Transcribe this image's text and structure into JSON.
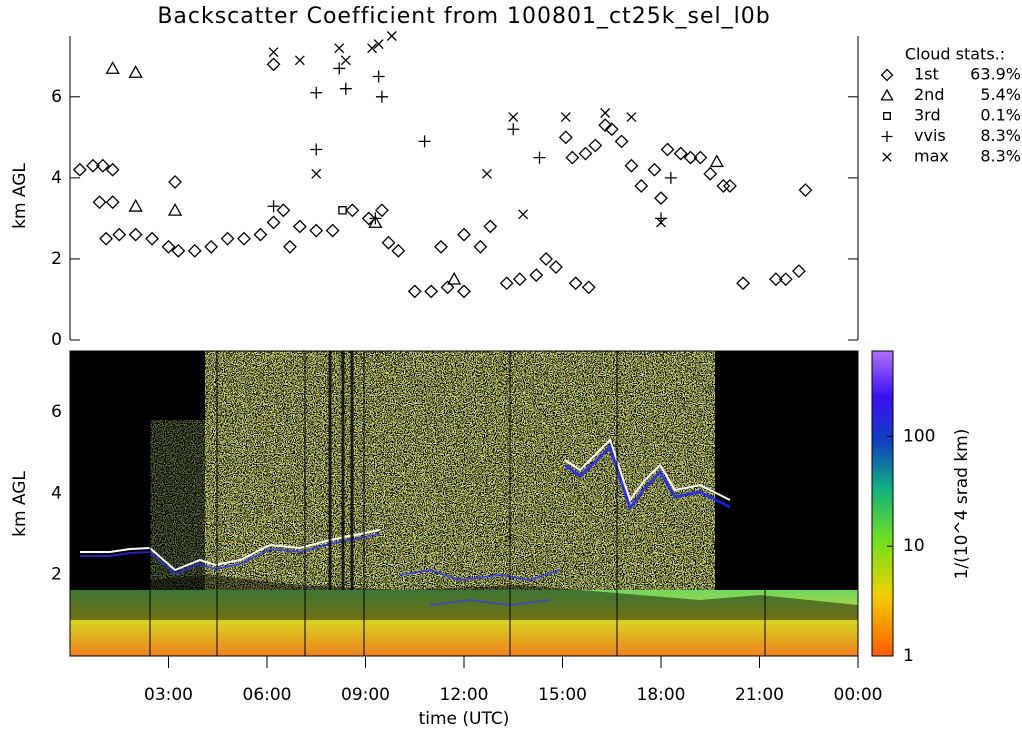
{
  "chart_data": [
    {
      "type": "scatter",
      "title": "Backscatter Coefficient from 100801_ct25k_sel_l0b",
      "ylabel": "km AGL",
      "xlim": [
        0,
        24
      ],
      "ylim": [
        0,
        7.5
      ],
      "yticks": [
        0,
        2,
        4,
        6
      ],
      "legend_title": "Cloud stats.:",
      "color": "#000000",
      "series": [
        {
          "name": "1st",
          "marker": "diamond",
          "share": 63.9,
          "share_label": "63.9%",
          "x": [
            0.3,
            0.7,
            1.0,
            1.3,
            0.9,
            1.3,
            1.1,
            1.5,
            2.0,
            2.5,
            3.0,
            3.3,
            3.8,
            4.3,
            4.8,
            5.3,
            5.8,
            6.2,
            6.5,
            6.7,
            7.0,
            7.5,
            8.0,
            8.6,
            9.1,
            9.5,
            9.7,
            10.0,
            10.5,
            11.0,
            11.5,
            12.0,
            11.3,
            12.0,
            12.5,
            12.8,
            13.3,
            13.7,
            14.2,
            14.5,
            14.8,
            15.1,
            15.3,
            15.7,
            16.0,
            16.3,
            16.5,
            15.4,
            15.8,
            16.8,
            17.1,
            17.4,
            17.8,
            18.2,
            18.6,
            18.9,
            19.2,
            19.5,
            19.9,
            20.1,
            20.5,
            21.5,
            21.8,
            22.2,
            22.4,
            6.2,
            3.2,
            18.0
          ],
          "values": [
            4.2,
            4.3,
            4.3,
            4.2,
            3.4,
            3.4,
            2.5,
            2.6,
            2.6,
            2.5,
            2.3,
            2.2,
            2.2,
            2.3,
            2.5,
            2.5,
            2.6,
            2.9,
            3.2,
            2.3,
            2.8,
            2.7,
            2.7,
            3.2,
            3.0,
            3.2,
            2.4,
            2.2,
            1.2,
            1.2,
            1.3,
            1.2,
            2.3,
            2.6,
            2.3,
            2.8,
            1.4,
            1.5,
            1.6,
            2.0,
            1.8,
            5.0,
            4.5,
            4.6,
            4.8,
            5.3,
            5.2,
            1.4,
            1.3,
            4.9,
            4.3,
            3.8,
            4.2,
            4.7,
            4.6,
            4.5,
            4.5,
            4.1,
            3.8,
            3.8,
            1.4,
            1.5,
            1.5,
            1.7,
            3.7,
            6.8,
            3.9,
            3.5
          ]
        },
        {
          "name": "2nd",
          "marker": "triangle",
          "share": 5.4,
          "share_label": "5.4%",
          "x": [
            1.3,
            2.0,
            3.2,
            2.0,
            11.7,
            19.7,
            9.3
          ],
          "values": [
            6.7,
            6.6,
            3.2,
            3.3,
            1.5,
            4.4,
            2.9
          ]
        },
        {
          "name": "3rd",
          "marker": "square",
          "share": 0.1,
          "share_label": "0.1%",
          "x": [
            8.3
          ],
          "values": [
            3.2
          ]
        },
        {
          "name": "vvis",
          "marker": "plus",
          "share": 8.3,
          "share_label": "8.3%",
          "x": [
            7.5,
            7.5,
            8.2,
            8.4,
            9.4,
            9.5,
            10.8,
            13.5,
            14.3,
            18.3,
            18.0,
            6.2,
            9.3
          ],
          "values": [
            4.7,
            6.1,
            6.7,
            6.2,
            6.5,
            6.0,
            4.9,
            5.2,
            4.5,
            4.0,
            3.0,
            3.3,
            3.0
          ]
        },
        {
          "name": "max",
          "marker": "cross",
          "share": 8.3,
          "share_label": "8.3%",
          "x": [
            6.2,
            7.0,
            8.2,
            8.4,
            9.2,
            9.4,
            9.8,
            7.5,
            13.5,
            15.1,
            16.3,
            17.1,
            12.7,
            18.0,
            13.8
          ],
          "values": [
            7.1,
            6.9,
            7.2,
            6.9,
            7.2,
            7.3,
            7.5,
            4.1,
            5.5,
            5.5,
            5.6,
            5.5,
            4.1,
            2.9,
            3.1
          ]
        }
      ]
    },
    {
      "type": "heatmap",
      "ylabel": "km AGL",
      "xlabel": "time (UTC)",
      "xlim": [
        0,
        24
      ],
      "xticks": [
        {
          "value": 3,
          "label": "03:00"
        },
        {
          "value": 6,
          "label": "06:00"
        },
        {
          "value": 9,
          "label": "09:00"
        },
        {
          "value": 12,
          "label": "12:00"
        },
        {
          "value": 15,
          "label": "15:00"
        },
        {
          "value": 18,
          "label": "18:00"
        },
        {
          "value": 21,
          "label": "21:00"
        },
        {
          "value": 24,
          "label": "00:00"
        }
      ],
      "ylim": [
        0,
        7.5
      ],
      "yticks": [
        2,
        4,
        6
      ],
      "colorbar_label": "1/(10^4 srad km)",
      "clim": [
        1,
        600
      ],
      "cticks": [
        1,
        10,
        100
      ],
      "log_scale": true
    }
  ]
}
